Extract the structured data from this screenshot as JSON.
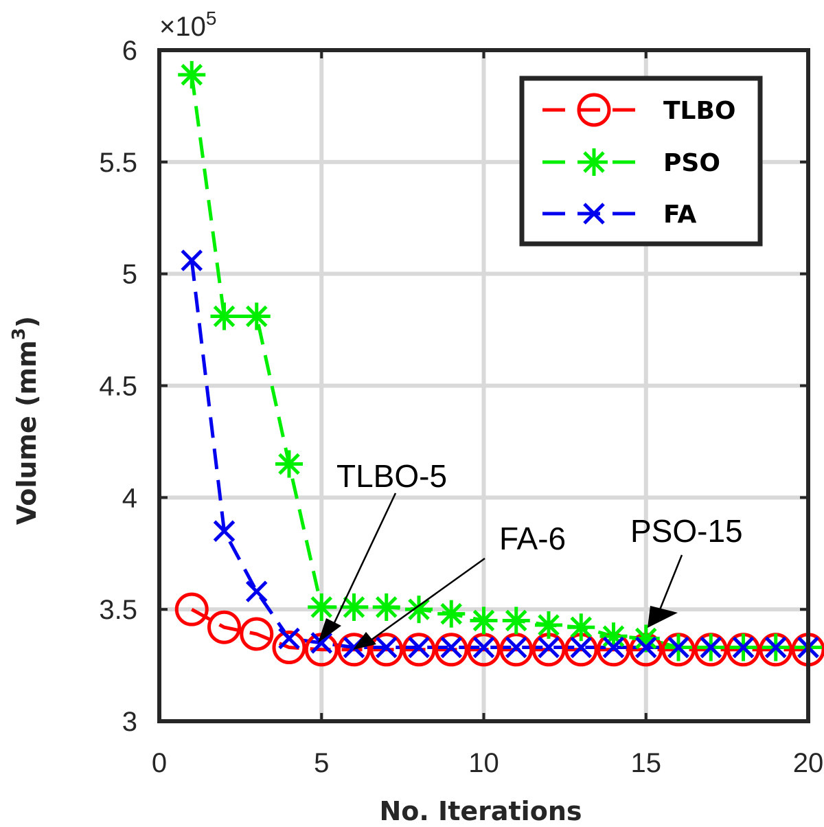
{
  "chart_data": {
    "type": "line",
    "xlabel": "No. Iterations",
    "ylabel": "Volume (mm",
    "ylabel_sup": "3",
    "ylabel_close": ")",
    "y_exponent_prefix": "×10",
    "y_exponent_power": "5",
    "xlim": [
      0,
      20
    ],
    "ylim": [
      3.0,
      6.0
    ],
    "xticks": [
      0,
      5,
      10,
      15,
      20
    ],
    "xtick_labels": [
      "0",
      "5",
      "10",
      "15",
      "20"
    ],
    "yticks": [
      3.0,
      3.5,
      4.0,
      4.5,
      5.0,
      5.5,
      6.0
    ],
    "ytick_labels": [
      "3",
      "3.5",
      "4",
      "4.5",
      "5",
      "5.5",
      "6"
    ],
    "grid": true,
    "legend_position": "top-right",
    "x": [
      1,
      2,
      3,
      4,
      5,
      6,
      7,
      8,
      9,
      10,
      11,
      12,
      13,
      14,
      15,
      16,
      17,
      18,
      19,
      20
    ],
    "series": [
      {
        "name": "TLBO",
        "color": "#ff0000",
        "marker": "circle",
        "values": [
          3.5,
          3.42,
          3.39,
          3.33,
          3.32,
          3.32,
          3.32,
          3.32,
          3.32,
          3.32,
          3.32,
          3.32,
          3.32,
          3.32,
          3.32,
          3.32,
          3.32,
          3.32,
          3.32,
          3.32
        ]
      },
      {
        "name": "PSO",
        "color": "#00ee00",
        "marker": "asterisk",
        "values": [
          5.89,
          4.81,
          4.81,
          4.15,
          3.51,
          3.51,
          3.51,
          3.5,
          3.48,
          3.45,
          3.45,
          3.43,
          3.42,
          3.38,
          3.37,
          3.33,
          3.33,
          3.33,
          3.33,
          3.33
        ]
      },
      {
        "name": "FA",
        "color": "#0000ee",
        "marker": "x",
        "values": [
          5.06,
          3.85,
          3.58,
          3.37,
          3.35,
          3.33,
          3.33,
          3.33,
          3.33,
          3.33,
          3.33,
          3.33,
          3.33,
          3.33,
          3.33,
          3.33,
          3.33,
          3.33,
          3.33,
          3.33
        ]
      }
    ],
    "annotations": [
      {
        "text": "TLBO-5",
        "x": 5,
        "y": 3.335
      },
      {
        "text": "FA-6",
        "x": 6,
        "y": 3.325
      },
      {
        "text": "PSO-15",
        "x": 15,
        "y": 3.36
      }
    ]
  }
}
